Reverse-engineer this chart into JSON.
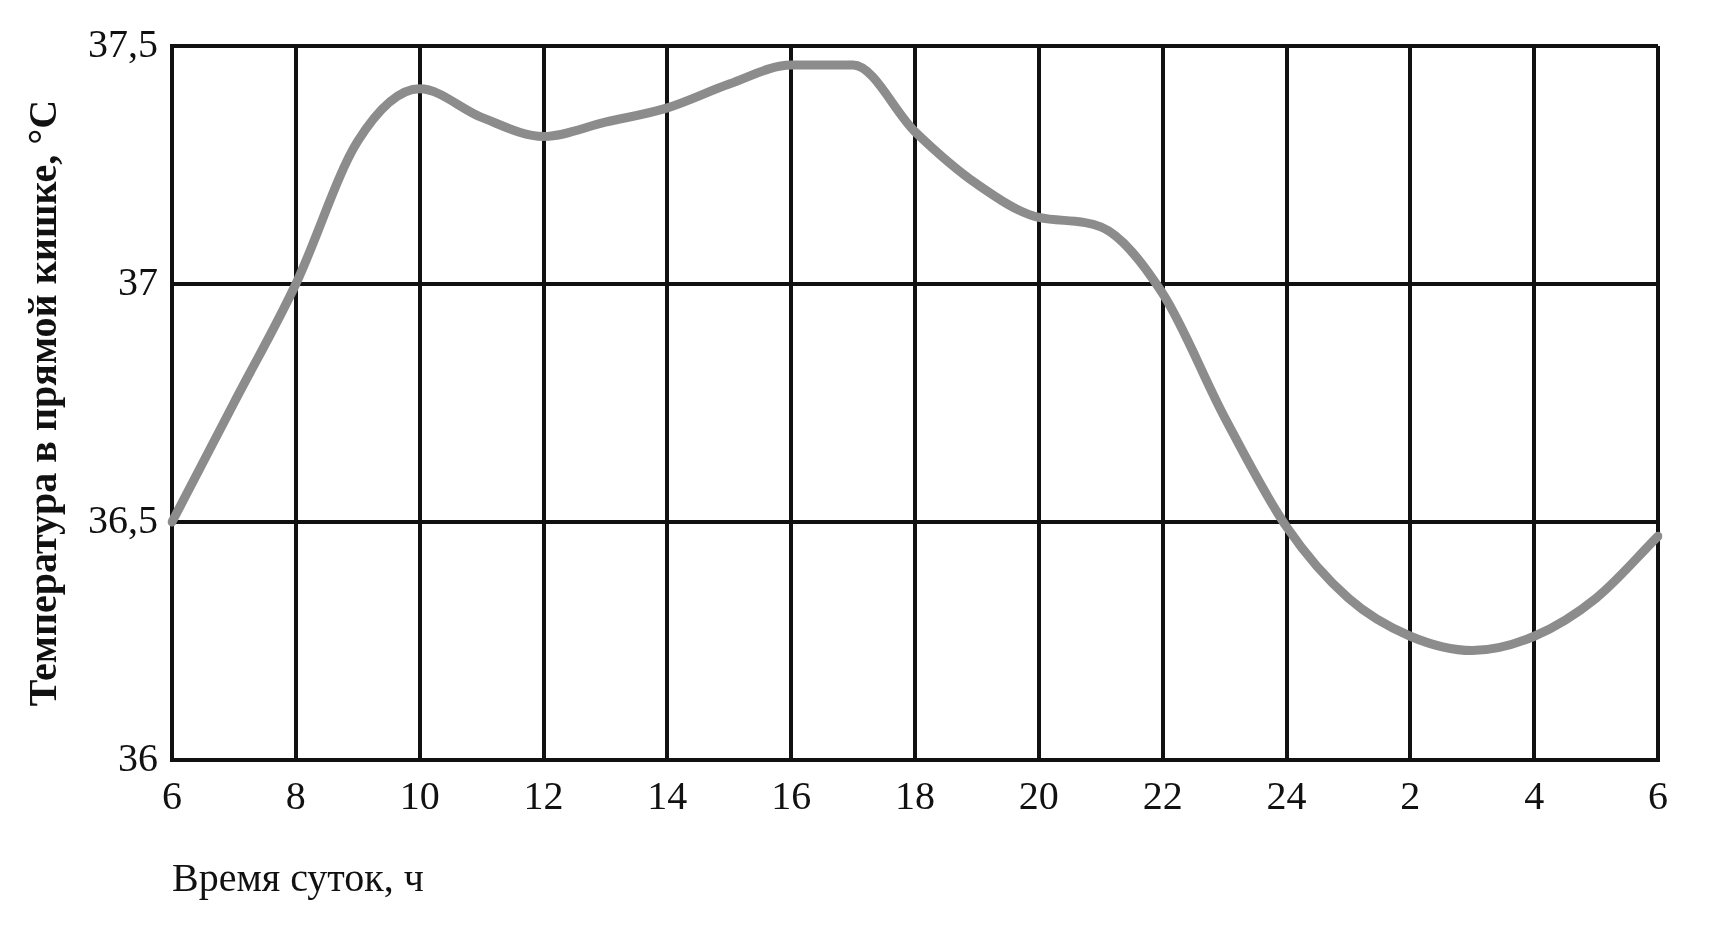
{
  "chart_data": {
    "type": "line",
    "xlabel": "Время суток, ч",
    "ylabel": "Температура в прямой кишке, °C",
    "categories": [
      "6",
      null,
      "8",
      null,
      "10",
      null,
      "12",
      null,
      "14",
      null,
      "16",
      null,
      "18",
      null,
      "20",
      null,
      "22",
      null,
      "24",
      null,
      "2",
      null,
      "4",
      null,
      "6"
    ],
    "series": [
      {
        "color": "#8c8c8c",
        "values": [
          36.5,
          36.75,
          37.0,
          37.3,
          37.41,
          37.35,
          37.31,
          37.34,
          37.37,
          37.42,
          37.46,
          37.46,
          37.32,
          37.21,
          37.14,
          37.12,
          36.98,
          36.72,
          36.49,
          36.34,
          36.26,
          36.23,
          36.26,
          36.34,
          36.47
        ]
      }
    ],
    "ylim": [
      36,
      37.5
    ],
    "yticks": [
      36,
      {
        "value": 36.5,
        "label": "36,5"
      },
      37,
      {
        "value": 37.5,
        "label": "37,5"
      }
    ],
    "grid": true,
    "marker": "none",
    "line_style": "solid",
    "legend": false
  }
}
